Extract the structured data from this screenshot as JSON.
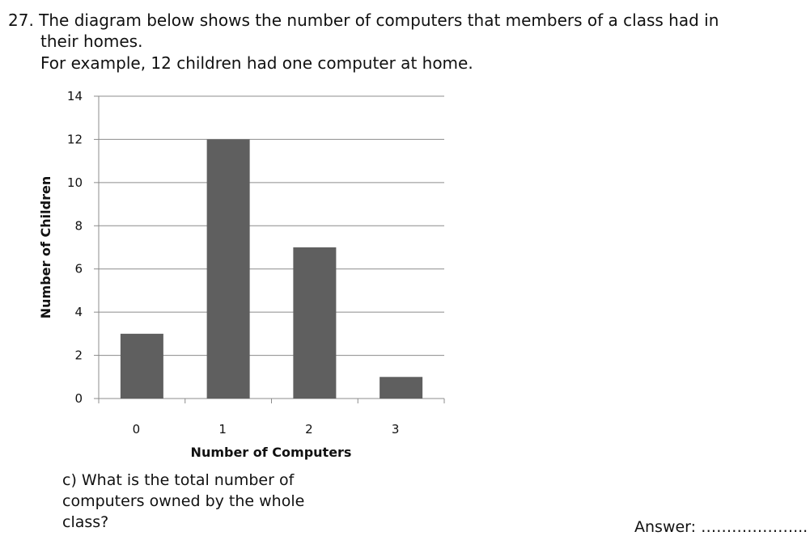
{
  "question": {
    "line1": "27. The diagram below shows the number of computers that members of a class had in",
    "line2": "their homes.",
    "line3": "For example, 12 children had one computer at home."
  },
  "chart_data": {
    "type": "bar",
    "categories": [
      "0",
      "1",
      "2",
      "3"
    ],
    "values": [
      3,
      12,
      7,
      1
    ],
    "xlabel": "Number of Computers",
    "ylabel": "Number of Children",
    "ylim": [
      0,
      14
    ],
    "yticks": [
      "0",
      "2",
      "4",
      "6",
      "8",
      "10",
      "12",
      "14"
    ],
    "ytick_values": [
      0,
      2,
      4,
      6,
      8,
      10,
      12,
      14
    ],
    "grid": true,
    "bar_color": "#5f5f5f",
    "grid_color": "#8c8c8c"
  },
  "subquestion": {
    "line1": "c) What is the total number of",
    "line2": "computers owned by the whole",
    "line3": "class?"
  },
  "answer": {
    "label": "Answer: ………………..."
  }
}
